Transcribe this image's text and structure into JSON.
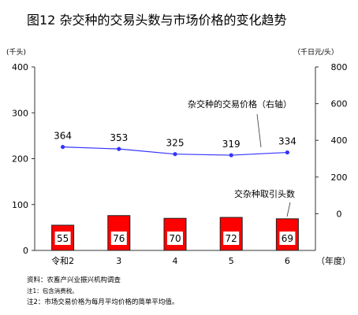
{
  "title": "图12 杂交种的交易头数与市场价格的变化趋势",
  "chart_data": {
    "type": "bar",
    "categories": [
      "令和2",
      "3",
      "4",
      "5",
      "6"
    ],
    "x_unit": "（年度）",
    "series": [
      {
        "name": "交杂种取引头数",
        "type": "bar",
        "axis": "left",
        "values": [
          55,
          76,
          70,
          72,
          69
        ],
        "color": "#ff0000",
        "edge_color": "#222222"
      },
      {
        "name": "杂交种的交易价格（右轴）",
        "type": "line",
        "axis": "right",
        "values": [
          364,
          353,
          325,
          319,
          334
        ],
        "color": "#3333ff"
      }
    ],
    "left_axis": {
      "unit": "(千头)",
      "ticks": [
        0,
        100,
        200,
        300,
        400
      ],
      "ylim": [
        0,
        400
      ]
    },
    "right_axis": {
      "unit": "（千日元/头）",
      "ticks": [
        0,
        200,
        400,
        600,
        800
      ],
      "ylim": [
        -200,
        800
      ]
    },
    "grid": false
  },
  "notes": [
    "资料：农畜产兴业振兴机构调查",
    "注1：包含消费税。",
    "注2：市场交易价格为每月平均价格的简单平均值。"
  ]
}
